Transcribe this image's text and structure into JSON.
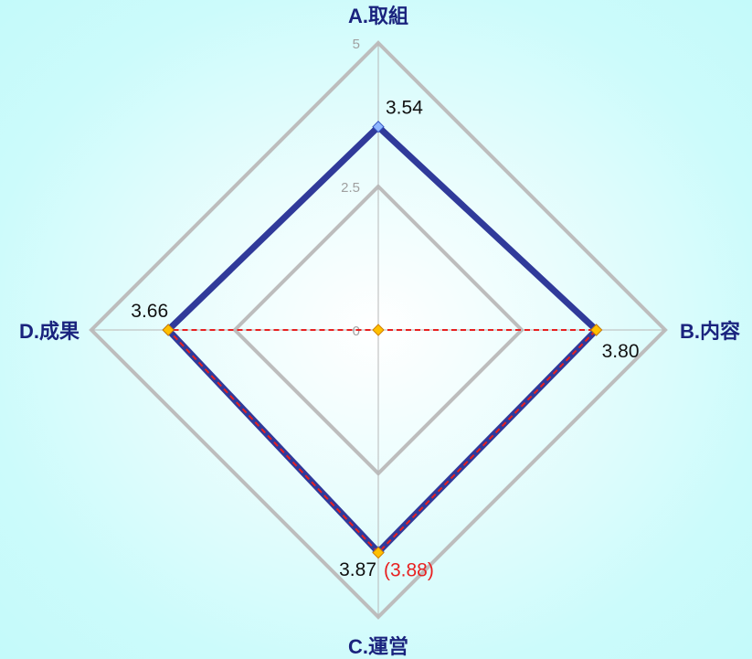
{
  "chart_data": {
    "type": "radar",
    "axes": [
      "A.取組",
      "B.内容",
      "C.運営",
      "D.成果"
    ],
    "scale": {
      "min": 0,
      "max": 5,
      "ticks": [
        "0",
        "2.5",
        "5"
      ]
    },
    "series": [
      {
        "values": [
          3.54,
          3.8,
          3.87,
          3.66
        ],
        "labels": [
          "3.54",
          "3.80",
          "3.87",
          "3.66"
        ],
        "color": "#303a9a"
      },
      {
        "values": [
          0,
          3.8,
          3.88,
          3.66
        ],
        "labels": [
          "(3.88)"
        ],
        "color": "#e82020"
      }
    ]
  }
}
